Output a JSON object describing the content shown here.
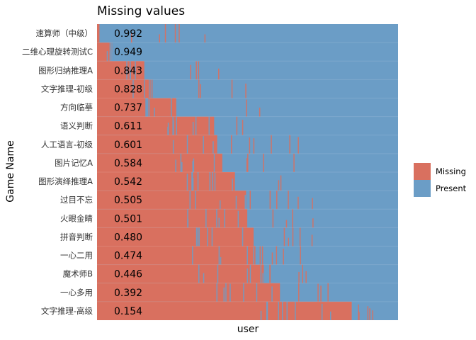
{
  "chart_data": {
    "type": "heatmap",
    "title": "Missing values",
    "xlabel": "user",
    "ylabel": "Game Name",
    "legend_placement": "right",
    "legend": [
      {
        "label": "Missing",
        "color": "#D9705F"
      },
      {
        "label": "Present",
        "color": "#6B9DC6"
      }
    ],
    "rows": [
      {
        "name": "速算师（中级）",
        "value_label": "0.992",
        "missing_fraction": 0.008
      },
      {
        "name": "二维心理旋转测试C",
        "value_label": "0.949",
        "missing_fraction": 0.051
      },
      {
        "name": "图形归纳推理A",
        "value_label": "0.843",
        "missing_fraction": 0.157
      },
      {
        "name": "文字推理-初级",
        "value_label": "0.828",
        "missing_fraction": 0.172
      },
      {
        "name": "方向临摹",
        "value_label": "0.737",
        "missing_fraction": 0.263
      },
      {
        "name": "语义判断",
        "value_label": "0.611",
        "missing_fraction": 0.389
      },
      {
        "name": "人工语言-初级",
        "value_label": "0.601",
        "missing_fraction": 0.399
      },
      {
        "name": "图片记忆A",
        "value_label": "0.584",
        "missing_fraction": 0.416
      },
      {
        "name": "图形演绎推理A",
        "value_label": "0.542",
        "missing_fraction": 0.458
      },
      {
        "name": "过目不忘",
        "value_label": "0.505",
        "missing_fraction": 0.495
      },
      {
        "name": "火眼金睛",
        "value_label": "0.501",
        "missing_fraction": 0.499
      },
      {
        "name": "拼音判断",
        "value_label": "0.480",
        "missing_fraction": 0.52
      },
      {
        "name": "一心二用",
        "value_label": "0.474",
        "missing_fraction": 0.526
      },
      {
        "name": "魔术师B",
        "value_label": "0.446",
        "missing_fraction": 0.554
      },
      {
        "name": "一心多用",
        "value_label": "0.392",
        "missing_fraction": 0.608
      },
      {
        "name": "文字推理-高级",
        "value_label": "0.154",
        "missing_fraction": 0.846
      }
    ],
    "colors": {
      "missing": "#D9705F",
      "present": "#6B9DC6",
      "grid": "#7FA9CF"
    }
  }
}
